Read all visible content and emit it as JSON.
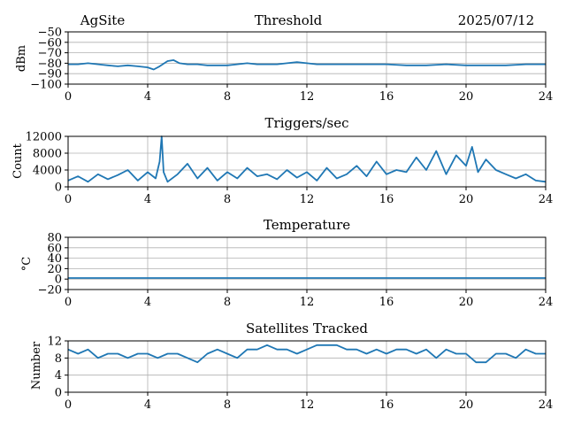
{
  "header": {
    "site": "AgSite",
    "date": "2025/07/12"
  },
  "colors": {
    "series": "#1f77b4",
    "grid": "#b0b0b0"
  },
  "chart_data": [
    {
      "type": "line",
      "title": "Threshold",
      "ylabel": "dBm",
      "xlim": [
        0,
        24
      ],
      "ylim": [
        -100,
        -50
      ],
      "xticks": [
        0,
        4,
        8,
        12,
        16,
        20,
        24
      ],
      "yticks": [
        -100,
        -90,
        -80,
        -70,
        -60,
        -50
      ],
      "ytick_labels": [
        "−100",
        "−90",
        "−80",
        "−70",
        "−60",
        "−50"
      ],
      "grid": true,
      "series": [
        {
          "x": [
            0,
            0.5,
            1,
            1.5,
            2,
            2.5,
            3,
            3.5,
            4,
            4.3,
            4.6,
            5,
            5.3,
            5.6,
            6,
            6.5,
            7,
            7.5,
            8,
            8.5,
            9,
            9.5,
            10,
            10.5,
            11,
            11.5,
            12,
            12.5,
            13,
            13.5,
            14,
            15,
            16,
            17,
            18,
            19,
            20,
            21,
            22,
            23,
            24
          ],
          "y": [
            -81,
            -81,
            -80,
            -81,
            -82,
            -83,
            -82,
            -83,
            -84,
            -86,
            -83,
            -78,
            -77,
            -80,
            -81,
            -81,
            -82,
            -82,
            -82,
            -81,
            -80,
            -81,
            -81,
            -81,
            -80,
            -79,
            -80,
            -81,
            -81,
            -81,
            -81,
            -81,
            -81,
            -82,
            -82,
            -81,
            -82,
            -82,
            -82,
            -81,
            -81
          ]
        }
      ]
    },
    {
      "type": "line",
      "title": "Triggers/sec",
      "ylabel": "Count",
      "xlim": [
        0,
        24
      ],
      "ylim": [
        0,
        12000
      ],
      "xticks": [
        0,
        4,
        8,
        12,
        16,
        20,
        24
      ],
      "yticks": [
        0,
        4000,
        8000,
        12000
      ],
      "ytick_labels": [
        "0",
        "4000",
        "8000",
        "12000"
      ],
      "grid": true,
      "series": [
        {
          "x": [
            0,
            0.5,
            1,
            1.5,
            2,
            2.5,
            3,
            3.5,
            4,
            4.4,
            4.6,
            4.7,
            4.8,
            5,
            5.5,
            6,
            6.5,
            7,
            7.5,
            8,
            8.5,
            9,
            9.5,
            10,
            10.5,
            11,
            11.5,
            12,
            12.5,
            13,
            13.5,
            14,
            14.5,
            15,
            15.5,
            16,
            16.5,
            17,
            17.5,
            18,
            18.5,
            19,
            19.5,
            20,
            20.3,
            20.6,
            21,
            21.5,
            22,
            22.5,
            23,
            23.5,
            24
          ],
          "y": [
            1500,
            2500,
            1200,
            3000,
            1800,
            2800,
            4000,
            1500,
            3500,
            2000,
            6000,
            12000,
            3500,
            1200,
            3000,
            5500,
            2000,
            4500,
            1500,
            3500,
            2000,
            4500,
            2500,
            3000,
            1800,
            4000,
            2200,
            3500,
            1500,
            4500,
            2000,
            3000,
            5000,
            2500,
            6000,
            3000,
            4000,
            3500,
            7000,
            4000,
            8500,
            3000,
            7500,
            5000,
            9500,
            3500,
            6500,
            4000,
            3000,
            2000,
            3000,
            1500,
            1200
          ]
        }
      ]
    },
    {
      "type": "line",
      "title": "Temperature",
      "ylabel": "°C",
      "xlim": [
        0,
        24
      ],
      "ylim": [
        -20,
        80
      ],
      "xticks": [
        0,
        4,
        8,
        12,
        16,
        20,
        24
      ],
      "yticks": [
        -20,
        0,
        20,
        40,
        60,
        80
      ],
      "ytick_labels": [
        "−20",
        "0",
        "20",
        "40",
        "60",
        "80"
      ],
      "grid": true,
      "series": [
        {
          "x": [
            0,
            24
          ],
          "y": [
            2,
            2
          ]
        }
      ]
    },
    {
      "type": "line",
      "title": "Satellites Tracked",
      "ylabel": "Number",
      "xlim": [
        0,
        24
      ],
      "ylim": [
        0,
        12
      ],
      "xticks": [
        0,
        4,
        8,
        12,
        16,
        20,
        24
      ],
      "yticks": [
        0,
        4,
        8,
        12
      ],
      "ytick_labels": [
        "0",
        "4",
        "8",
        "12"
      ],
      "grid": true,
      "series": [
        {
          "x": [
            0,
            0.5,
            1,
            1.5,
            2,
            2.5,
            3,
            3.5,
            4,
            4.5,
            5,
            5.5,
            6,
            6.5,
            7,
            7.5,
            8,
            8.5,
            9,
            9.5,
            10,
            10.5,
            11,
            11.5,
            12,
            12.5,
            13,
            13.5,
            14,
            14.5,
            15,
            15.5,
            16,
            16.5,
            17,
            17.5,
            18,
            18.5,
            19,
            19.5,
            20,
            20.5,
            21,
            21.5,
            22,
            22.5,
            23,
            23.5,
            24
          ],
          "y": [
            10,
            9,
            10,
            8,
            9,
            9,
            8,
            9,
            9,
            8,
            9,
            9,
            8,
            7,
            9,
            10,
            9,
            8,
            10,
            10,
            11,
            10,
            10,
            9,
            10,
            11,
            11,
            11,
            10,
            10,
            9,
            10,
            9,
            10,
            10,
            9,
            10,
            8,
            10,
            9,
            9,
            7,
            7,
            9,
            9,
            8,
            10,
            9,
            9
          ]
        }
      ]
    }
  ]
}
